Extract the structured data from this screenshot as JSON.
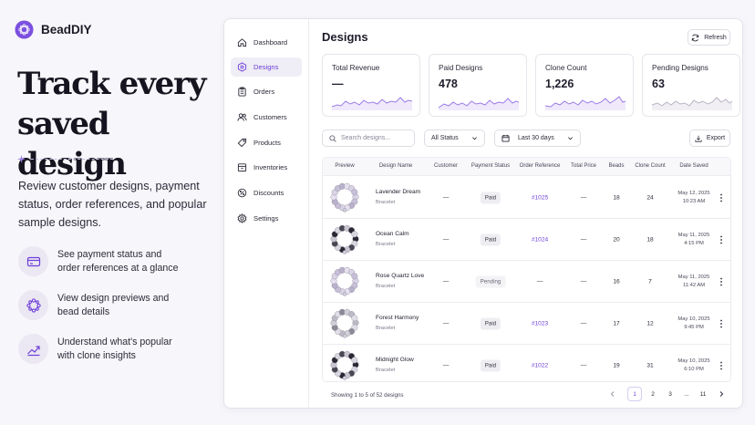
{
  "brand": {
    "name": "BeadDIY"
  },
  "marketing": {
    "headline": "Track every saved design",
    "intro": "Review customer designs, payment status, order references, and popular sample designs.",
    "features": [
      {
        "icon": "credit-card-icon",
        "text": "See payment status and order references at a glance"
      },
      {
        "icon": "bead-ring-icon",
        "text": "View design previews and bead details"
      },
      {
        "icon": "trend-up-icon",
        "text": "Understand what's popular with clone insights"
      }
    ]
  },
  "sidebar": {
    "items": [
      {
        "label": "Dashboard",
        "icon": "home-icon"
      },
      {
        "label": "Designs",
        "icon": "design-icon",
        "active": true
      },
      {
        "label": "Orders",
        "icon": "clipboard-icon"
      },
      {
        "label": "Customers",
        "icon": "users-icon"
      },
      {
        "label": "Products",
        "icon": "tag-icon"
      },
      {
        "label": "Inventories",
        "icon": "box-icon"
      },
      {
        "label": "Discounts",
        "icon": "badge-percent-icon"
      },
      {
        "label": "Settings",
        "icon": "gear-icon"
      }
    ]
  },
  "page": {
    "title": "Designs",
    "refresh_label": "Refresh",
    "export_label": "Export"
  },
  "stats": [
    {
      "label": "Total Revenue",
      "value": "—"
    },
    {
      "label": "Paid Designs",
      "value": "478"
    },
    {
      "label": "Clone Count",
      "value": "1,226"
    },
    {
      "label": "Pending Designs",
      "value": "63"
    }
  ],
  "filters": {
    "search_placeholder": "Search designs...",
    "status": "All Status",
    "range": "Last 30 days"
  },
  "table": {
    "columns": [
      "Preview",
      "Design Name",
      "Customer",
      "Payment Status",
      "Order Reference",
      "Total Price",
      "Beads",
      "Clone Count",
      "Date Saved"
    ],
    "rows": [
      {
        "name": "Lavender Dream",
        "category": "Bracelet",
        "customer": "—",
        "status": "Paid",
        "order": "#1025",
        "price": "—",
        "beads": "18",
        "clones": "24",
        "date": "May 12, 2025",
        "time": "10:23 AM",
        "style": "lavender"
      },
      {
        "name": "Ocean Calm",
        "category": "Bracelet",
        "customer": "—",
        "status": "Paid",
        "order": "#1024",
        "price": "—",
        "beads": "20",
        "clones": "18",
        "date": "May 11, 2025",
        "time": "4:15 PM",
        "style": "dark"
      },
      {
        "name": "Rose Quartz Love",
        "category": "Bracelet",
        "customer": "—",
        "status": "Pending",
        "order": "—",
        "price": "—",
        "beads": "16",
        "clones": "7",
        "date": "May 11, 2025",
        "time": "11:42 AM",
        "style": "lavender"
      },
      {
        "name": "Forest Harmony",
        "category": "Bracelet",
        "customer": "—",
        "status": "Paid",
        "order": "#1023",
        "price": "—",
        "beads": "17",
        "clones": "12",
        "date": "May 10, 2025",
        "time": "9:45 PM",
        "style": "grey"
      },
      {
        "name": "Midnight Glow",
        "category": "Bracelet",
        "customer": "—",
        "status": "Paid",
        "order": "#1022",
        "price": "—",
        "beads": "19",
        "clones": "31",
        "date": "May 10, 2025",
        "time": "6:10 PM",
        "style": "dark"
      }
    ]
  },
  "pagination": {
    "summary": "Showing 1 to 5 of 52 designs",
    "pages": [
      "1",
      "2",
      "3",
      "...",
      "11"
    ],
    "current": "1"
  },
  "colors": {
    "accent": "#6d3fd8",
    "sparkline": "#9b7be6"
  }
}
